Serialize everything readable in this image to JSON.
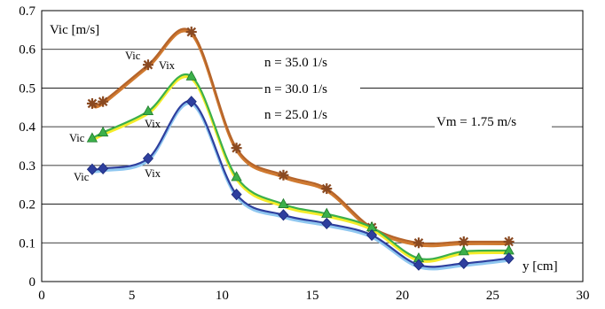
{
  "chart_data": {
    "type": "line",
    "title": "",
    "xlabel": "y [cm]",
    "ylabel": "Vic [m/s]",
    "xlim": [
      0,
      30
    ],
    "ylim": [
      0,
      0.7
    ],
    "x_ticks": [
      0,
      5,
      10,
      15,
      20,
      25,
      30
    ],
    "y_ticks": [
      0,
      0.1,
      0.2,
      0.3,
      0.4,
      0.5,
      0.6,
      0.7
    ],
    "grid": "horizontal",
    "legend": "none",
    "series": [
      {
        "name": "n = 35.0 1/s",
        "color": "#b5642a",
        "line_color": "#d07a30",
        "marker": "asterisk",
        "x": [
          2.8,
          3.4,
          5.9,
          8.3,
          10.8,
          13.4,
          15.8,
          18.3,
          20.9,
          23.4,
          25.9
        ],
        "y": [
          0.46,
          0.465,
          0.56,
          0.645,
          0.345,
          0.275,
          0.24,
          0.14,
          0.1,
          0.103,
          0.103
        ]
      },
      {
        "name": "n = 30.0 1/s",
        "color": "#3cb04a",
        "line_color": "#f5ec2a",
        "marker": "triangle",
        "x": [
          2.8,
          3.4,
          5.9,
          8.3,
          10.8,
          13.4,
          15.8,
          18.3,
          20.9,
          23.4,
          25.9
        ],
        "y": [
          0.37,
          0.385,
          0.44,
          0.53,
          0.27,
          0.2,
          0.175,
          0.14,
          0.06,
          0.078,
          0.08
        ]
      },
      {
        "name": "n = 25.0 1/s",
        "color": "#2e3f9e",
        "line_color": "#8fc7f0",
        "marker": "diamond",
        "x": [
          2.8,
          3.4,
          5.9,
          8.3,
          10.8,
          13.4,
          15.8,
          18.3,
          20.9,
          23.4,
          25.9
        ],
        "y": [
          0.29,
          0.292,
          0.318,
          0.465,
          0.225,
          0.172,
          0.15,
          0.12,
          0.043,
          0.047,
          0.06
        ]
      }
    ],
    "annotations": [
      "Vic",
      "Vix",
      "Vic",
      "Vix",
      "Vic",
      "Vix",
      "Vm = 1.75 m/s"
    ]
  },
  "labels": {
    "n35": "n = 35.0 1/s",
    "n30": "n = 30.0 1/s",
    "n25": "n = 25.0 1/s",
    "vm": "Vm = 1.75 m/s",
    "vic_top": "Vic",
    "vix_top": "Vix",
    "vic_mid": "Vic",
    "vix_mid": "Vix",
    "vic_bot": "Vic",
    "vix_bot": "Vix"
  }
}
